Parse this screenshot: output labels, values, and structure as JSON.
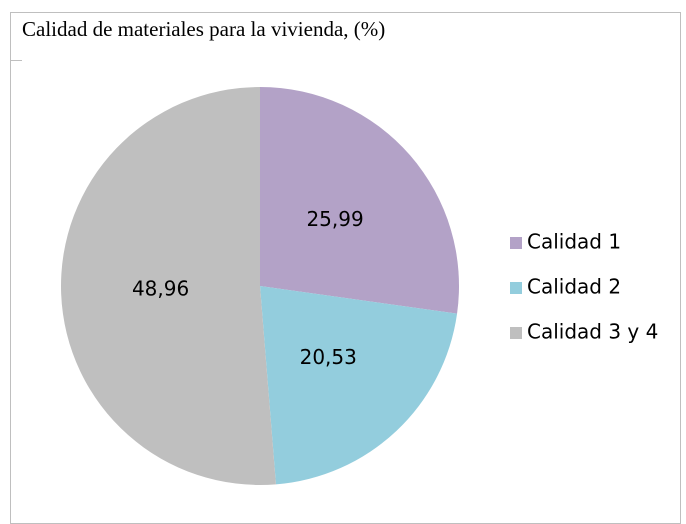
{
  "chart_data": {
    "type": "pie",
    "title": "Calidad de materiales para la vivienda, (%)",
    "categories": [
      "Calidad 1",
      "Calidad 2",
      "Calidad 3 y 4"
    ],
    "values": [
      25.99,
      20.53,
      48.96
    ],
    "value_labels": [
      "25,99",
      "20,53",
      "48,96"
    ],
    "colors": [
      "#b3a2c7",
      "#93cddd",
      "#bfbfbf"
    ],
    "legend": "right"
  }
}
